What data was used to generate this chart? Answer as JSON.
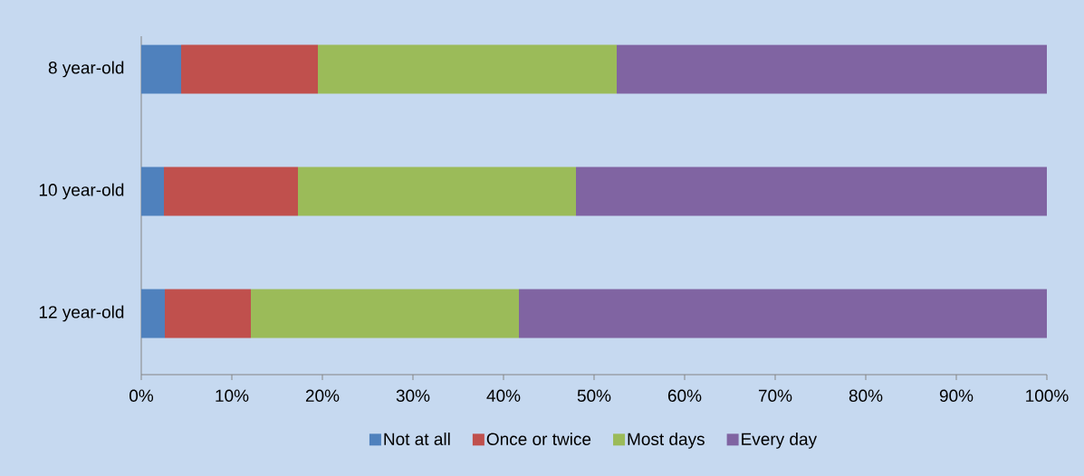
{
  "chart_data": {
    "type": "bar",
    "orientation": "horizontal",
    "stacked": true,
    "categories": [
      "8 year-old",
      "10 year-old",
      "12 year-old"
    ],
    "series": [
      {
        "name": "Not at all",
        "color": "#4f81bd",
        "values": [
          4.4,
          2.5,
          2.6
        ]
      },
      {
        "name": "Once or twice",
        "color": "#c0504d",
        "values": [
          15.1,
          14.8,
          9.5
        ]
      },
      {
        "name": "Most days",
        "color": "#9bbb59",
        "values": [
          33.0,
          30.7,
          29.6
        ]
      },
      {
        "name": "Every day",
        "color": "#8064a2",
        "values": [
          47.5,
          52.0,
          58.3
        ]
      }
    ],
    "xlim": [
      0,
      100
    ],
    "xticks": [
      {
        "value": 0,
        "label": "0%"
      },
      {
        "value": 10,
        "label": "10%"
      },
      {
        "value": 20,
        "label": "20%"
      },
      {
        "value": 30,
        "label": "30%"
      },
      {
        "value": 40,
        "label": "40%"
      },
      {
        "value": 50,
        "label": "50%"
      },
      {
        "value": 60,
        "label": "60%"
      },
      {
        "value": 70,
        "label": "70%"
      },
      {
        "value": 80,
        "label": "80%"
      },
      {
        "value": 90,
        "label": "90%"
      },
      {
        "value": 100,
        "label": "100%"
      }
    ],
    "legend": "bottom"
  }
}
